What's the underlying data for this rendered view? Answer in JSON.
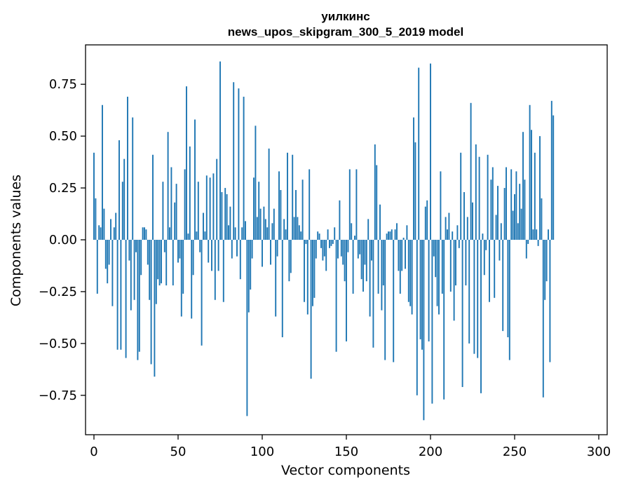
{
  "chart_data": {
    "type": "bar",
    "title_lines": [
      "уилкинс",
      "news_upos_skipgram_300_5_2019 model"
    ],
    "xlabel": "Vector components",
    "ylabel": "Components values",
    "xlim": [
      -5,
      305
    ],
    "ylim": [
      -0.94,
      0.94
    ],
    "xticks": [
      0,
      50,
      100,
      150,
      200,
      250,
      300
    ],
    "yticks": [
      -0.75,
      -0.5,
      -0.25,
      0.0,
      0.25,
      0.5,
      0.75
    ],
    "ytick_labels": [
      "−0.75",
      "−0.50",
      "−0.25",
      "0.00",
      "0.25",
      "0.50",
      "0.75"
    ],
    "bar_color": "#1f77b4",
    "values": [
      0.42,
      0.2,
      -0.26,
      0.07,
      0.06,
      0.65,
      0.15,
      -0.14,
      -0.21,
      -0.12,
      0.1,
      -0.32,
      0.06,
      0.13,
      -0.53,
      0.48,
      -0.53,
      0.28,
      0.39,
      -0.57,
      0.69,
      -0.1,
      -0.34,
      0.59,
      -0.29,
      -0.06,
      -0.58,
      -0.54,
      -0.17,
      0.06,
      0.06,
      0.05,
      -0.12,
      -0.29,
      -0.6,
      0.41,
      -0.66,
      -0.31,
      -0.19,
      -0.22,
      -0.21,
      0.28,
      -0.06,
      -0.22,
      0.52,
      0.06,
      0.35,
      -0.22,
      0.18,
      0.27,
      -0.11,
      -0.09,
      -0.37,
      -0.26,
      0.34,
      0.74,
      0.03,
      0.45,
      -0.38,
      -0.17,
      0.58,
      0.04,
      0.28,
      -0.06,
      -0.51,
      0.13,
      0.04,
      0.31,
      -0.11,
      0.3,
      -0.15,
      0.32,
      -0.29,
      0.39,
      -0.15,
      0.86,
      0.23,
      -0.3,
      0.25,
      0.22,
      0.07,
      0.16,
      -0.09,
      0.76,
      0.06,
      -0.08,
      0.73,
      -0.19,
      0.06,
      0.69,
      0.09,
      -0.85,
      -0.35,
      -0.24,
      -0.09,
      0.3,
      0.55,
      0.11,
      0.28,
      0.15,
      -0.13,
      0.16,
      0.1,
      0.06,
      0.44,
      -0.12,
      0.08,
      0.15,
      -0.37,
      -0.08,
      0.33,
      0.24,
      -0.47,
      0.1,
      0.05,
      0.42,
      -0.2,
      -0.16,
      0.41,
      0.11,
      0.24,
      0.11,
      0.07,
      0.04,
      0.29,
      -0.3,
      -0.02,
      -0.36,
      0.34,
      -0.67,
      -0.32,
      -0.28,
      -0.09,
      0.04,
      0.03,
      -0.04,
      -0.1,
      -0.08,
      -0.15,
      0.05,
      -0.04,
      -0.03,
      -0.02,
      0.06,
      -0.54,
      -0.09,
      0.19,
      -0.08,
      -0.12,
      -0.2,
      -0.49,
      -0.06,
      0.34,
      0.08,
      -0.26,
      0.02,
      0.34,
      -0.09,
      -0.07,
      -0.19,
      -0.25,
      -0.12,
      -0.2,
      0.1,
      -0.37,
      -0.1,
      -0.52,
      0.46,
      0.36,
      -0.26,
      0.17,
      -0.34,
      -0.22,
      -0.58,
      0.03,
      0.04,
      0.04,
      0.05,
      -0.59,
      0.05,
      0.08,
      -0.15,
      -0.26,
      -0.15,
      0.01,
      -0.14,
      0.07,
      -0.3,
      -0.32,
      -0.36,
      0.59,
      0.47,
      -0.75,
      0.83,
      -0.48,
      -0.53,
      -0.87,
      0.16,
      0.19,
      -0.49,
      0.85,
      -0.79,
      -0.08,
      -0.18,
      -0.32,
      -0.36,
      0.33,
      -0.26,
      -0.77,
      0.11,
      0.05,
      0.13,
      -0.25,
      0.04,
      -0.39,
      -0.22,
      0.07,
      -0.04,
      0.42,
      -0.71,
      0.23,
      -0.22,
      0.11,
      -0.5,
      0.66,
      0.18,
      -0.55,
      0.46,
      -0.57,
      0.4,
      -0.74,
      0.03,
      -0.17,
      -0.05,
      0.41,
      -0.3,
      0.29,
      0.35,
      -0.28,
      0.12,
      0.26,
      -0.1,
      0.08,
      -0.44,
      0.25,
      0.35,
      -0.47,
      -0.58,
      0.34,
      0.14,
      0.22,
      0.33,
      0.08,
      0.27,
      0.15,
      0.52,
      0.29,
      -0.09,
      -0.02,
      0.65,
      0.53,
      0.05,
      0.42,
      0.05,
      -0.03,
      0.5,
      0.2,
      -0.76,
      -0.29,
      -0.2,
      0.05,
      -0.59,
      0.67,
      0.6
    ]
  }
}
